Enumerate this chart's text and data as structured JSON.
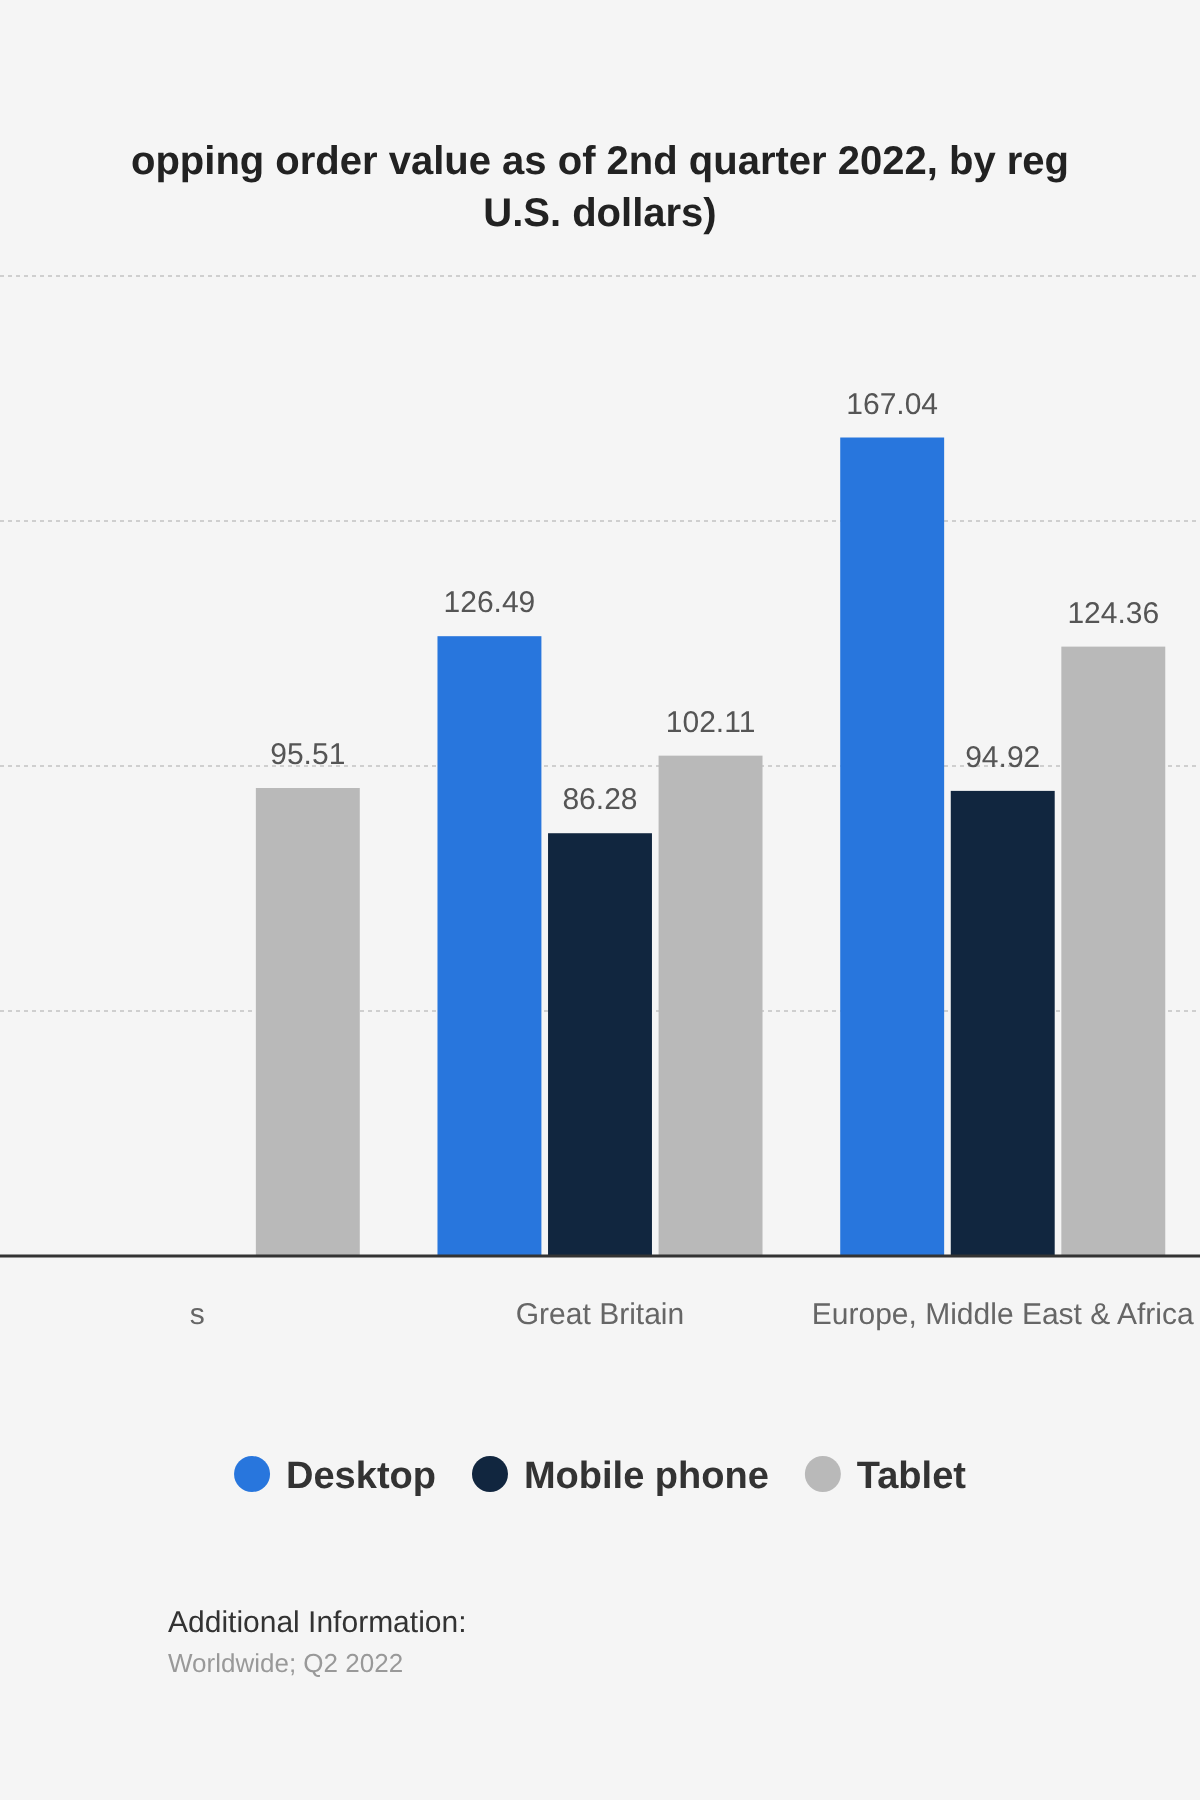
{
  "chart_data": {
    "type": "bar",
    "title": "opping order value as of 2nd quarter 2022, by reg\nU.S. dollars)",
    "categories": [
      "s",
      "Great Britain",
      "Europe, Middle East & Africa"
    ],
    "series": [
      {
        "name": "Desktop",
        "color": "#2876dd",
        "values": [
          null,
          126.49,
          167.04
        ]
      },
      {
        "name": "Mobile phone",
        "color": "#11263f",
        "values": [
          null,
          86.28,
          94.92
        ]
      },
      {
        "name": "Tablet",
        "color": "#b9b9b9",
        "values": [
          95.51,
          102.11,
          124.36
        ]
      }
    ],
    "ylim": [
      0,
      200
    ],
    "yticks": [
      {
        "value": 0,
        "label": null
      },
      {
        "value": 50,
        "label": null
      },
      {
        "value": 100,
        "label": null
      },
      {
        "value": 150,
        "label": null
      },
      {
        "value": 200,
        "label": null
      }
    ],
    "grid": "y",
    "tick_labels": "x",
    "data_labels": true,
    "legend": "bottom",
    "annotations": [
      "Additional Information:",
      "Worldwide; Q2 2022"
    ]
  }
}
